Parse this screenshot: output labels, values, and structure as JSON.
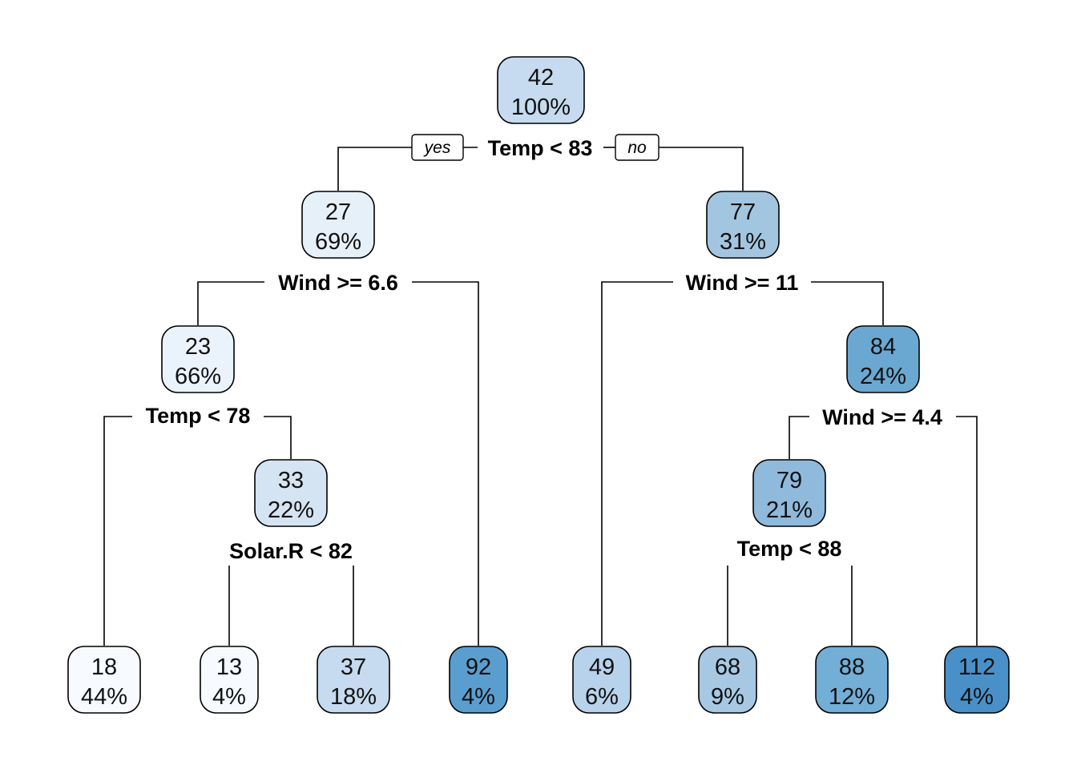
{
  "tree": {
    "branch_labels": {
      "yes": "yes",
      "no": "no"
    },
    "nodes": [
      {
        "id": "root",
        "value": "42",
        "percent": "100%",
        "fill": "#c6dbef",
        "split": "Temp < 83"
      },
      {
        "id": "n2",
        "value": "27",
        "percent": "69%",
        "fill": "#e6f0f9",
        "split": "Wind >= 6.6"
      },
      {
        "id": "n3",
        "value": "77",
        "percent": "31%",
        "fill": "#a3c6e0",
        "split": "Wind >= 11"
      },
      {
        "id": "n4",
        "value": "23",
        "percent": "66%",
        "fill": "#eaf2fb",
        "split": "Temp < 78"
      },
      {
        "id": "n7",
        "value": "84",
        "percent": "24%",
        "fill": "#6aa8d1",
        "split": "Wind >= 4.4"
      },
      {
        "id": "n9",
        "value": "33",
        "percent": "22%",
        "fill": "#d5e4f3",
        "split": "Solar.R < 82"
      },
      {
        "id": "n14",
        "value": "79",
        "percent": "21%",
        "fill": "#8fbadb",
        "split": "Temp < 88"
      },
      {
        "id": "l8",
        "value": "18",
        "percent": "44%",
        "fill": "#f7fbff"
      },
      {
        "id": "l18",
        "value": "13",
        "percent": "4%",
        "fill": "#f7fbff"
      },
      {
        "id": "l19",
        "value": "37",
        "percent": "18%",
        "fill": "#c6dbef"
      },
      {
        "id": "l5",
        "value": "92",
        "percent": "4%",
        "fill": "#5a9ecf"
      },
      {
        "id": "l6",
        "value": "49",
        "percent": "6%",
        "fill": "#b8d2eb"
      },
      {
        "id": "l28",
        "value": "68",
        "percent": "9%",
        "fill": "#a6c8e3"
      },
      {
        "id": "l29",
        "value": "88",
        "percent": "12%",
        "fill": "#72aed6"
      },
      {
        "id": "l15",
        "value": "112",
        "percent": "4%",
        "fill": "#4a90c8"
      }
    ]
  }
}
